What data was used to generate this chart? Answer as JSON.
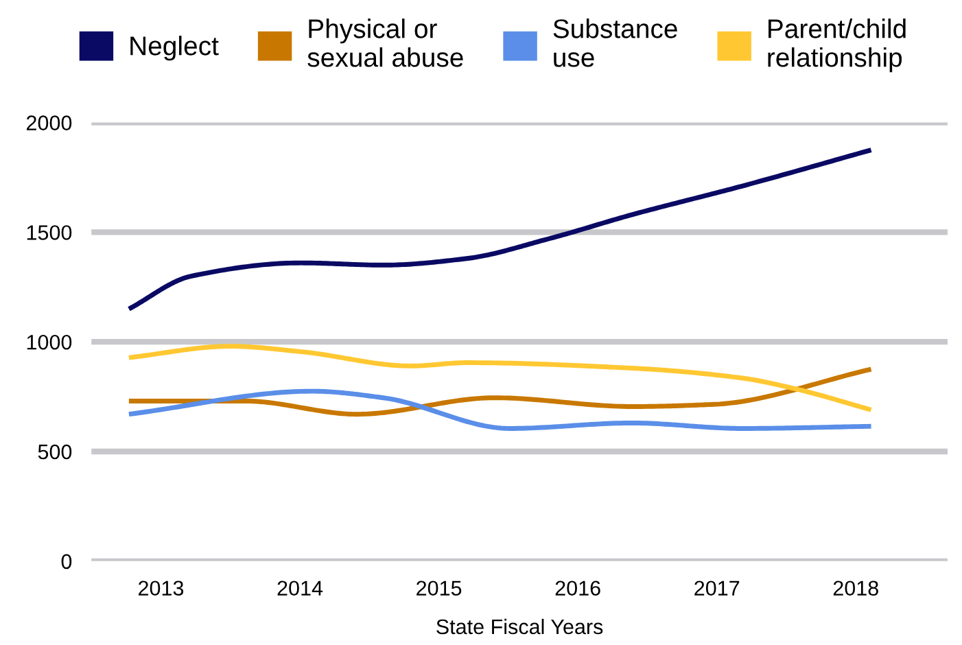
{
  "chart_data": {
    "type": "line",
    "xlabel": "State Fiscal Years",
    "xlim": [
      2012.5,
      2018.66
    ],
    "xticks": [
      2013,
      2014,
      2015,
      2016,
      2017,
      2018
    ],
    "ylim": [
      0,
      2000
    ],
    "yticks": [
      0,
      500,
      1000,
      1500,
      2000
    ],
    "grid": "y",
    "legend": "top",
    "marker": "none",
    "line_style": "solid",
    "series": [
      {
        "name": "Neglect",
        "color": "#0a0a64",
        "x": [
          2012.77,
          2013.22,
          2014.01,
          2014.6,
          2015.2,
          2015.79,
          2016.39,
          2017.18,
          2018.11
        ],
        "values": [
          1150,
          1300,
          1360,
          1350,
          1380,
          1470,
          1580,
          1710,
          1875
        ]
      },
      {
        "name": "Physical or\nsexual abuse",
        "color": "#c87800",
        "x": [
          2012.77,
          2013.61,
          2014.41,
          2015.4,
          2016.39,
          2016.98,
          2018.11
        ],
        "values": [
          730,
          730,
          670,
          745,
          705,
          715,
          875
        ]
      },
      {
        "name": "Substance\nuse",
        "color": "#5a8ee8",
        "x": [
          2012.77,
          2014.09,
          2014.6,
          2015.51,
          2016.39,
          2017.18,
          2018.11
        ],
        "values": [
          670,
          775,
          745,
          605,
          630,
          605,
          615
        ]
      },
      {
        "name": "Parent/child\nrelationship",
        "color": "#ffc832",
        "x": [
          2012.77,
          2013.5,
          2014.01,
          2014.8,
          2015.2,
          2016.39,
          2017.18,
          2017.57,
          2018.11
        ],
        "values": [
          928,
          980,
          955,
          890,
          905,
          880,
          835,
          785,
          690
        ]
      }
    ]
  }
}
